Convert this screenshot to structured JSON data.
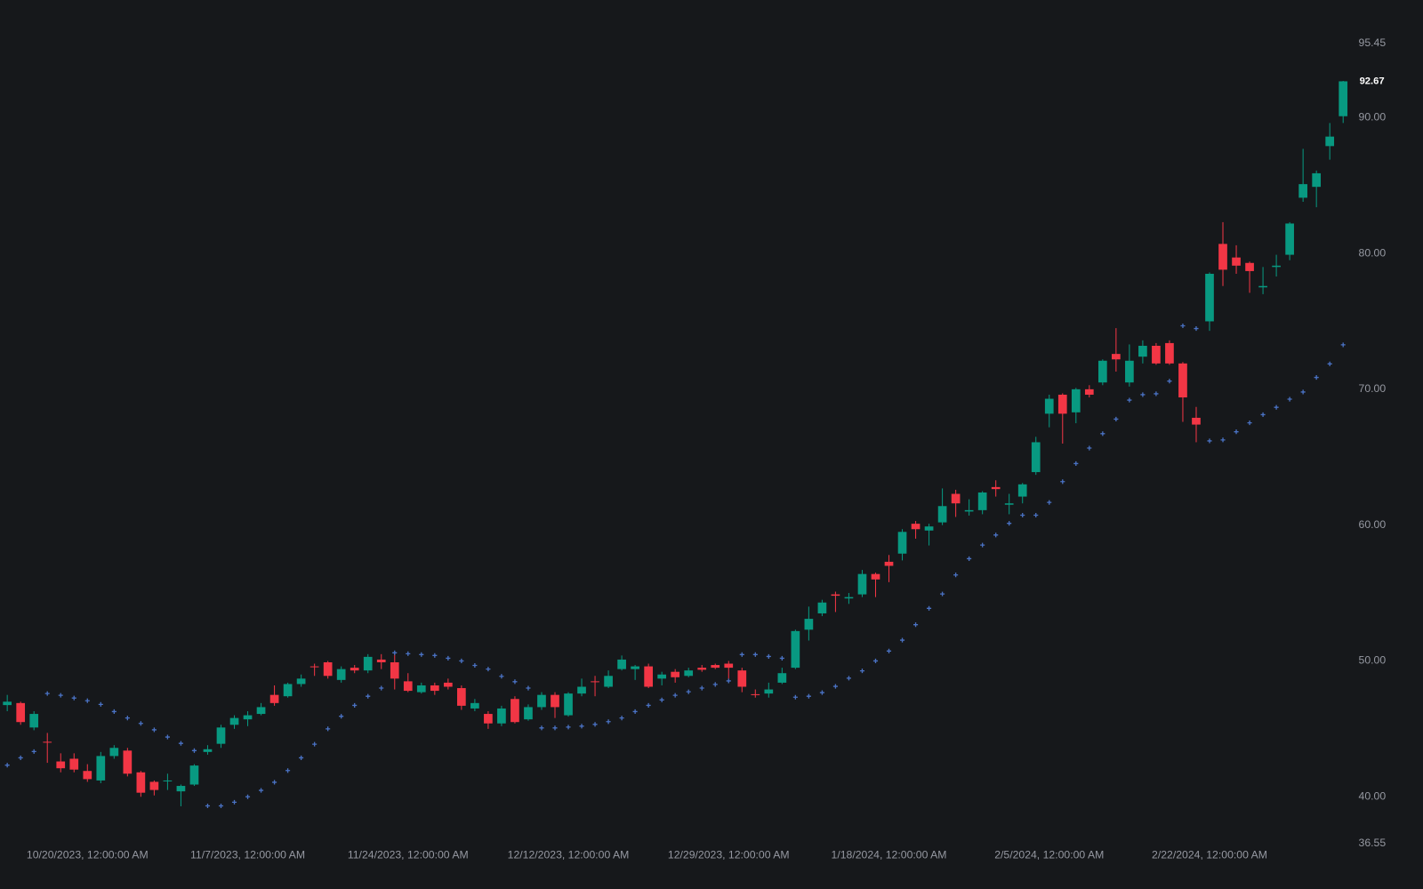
{
  "chart_data": {
    "type": "candlestick",
    "up_color": "#089981",
    "down_color": "#f23645",
    "ylim": [
      36.55,
      95.45
    ],
    "yticks": [
      36.55,
      {
        "value": 40,
        "label": "40.00"
      },
      {
        "value": 50,
        "label": "50.00"
      },
      {
        "value": 60,
        "label": "60.00"
      },
      {
        "value": 70,
        "label": "70.00"
      },
      {
        "value": 80,
        "label": "80.00"
      },
      {
        "value": 90,
        "label": "90.00"
      },
      95.45
    ],
    "categories": [
      null,
      null,
      null,
      null,
      null,
      null,
      "10/20/2023, 12:00:00 AM",
      null,
      null,
      null,
      null,
      null,
      null,
      null,
      null,
      null,
      null,
      null,
      "11/7/2023, 12:00:00 AM",
      null,
      null,
      null,
      null,
      null,
      null,
      null,
      null,
      null,
      null,
      null,
      "11/24/2023, 12:00:00 AM",
      null,
      null,
      null,
      null,
      null,
      null,
      null,
      null,
      null,
      null,
      null,
      "12/12/2023, 12:00:00 AM",
      null,
      null,
      null,
      null,
      null,
      null,
      null,
      null,
      null,
      null,
      null,
      "12/29/2023, 12:00:00 AM",
      null,
      null,
      null,
      null,
      null,
      null,
      null,
      null,
      null,
      null,
      null,
      "1/18/2024, 12:00:00 AM",
      null,
      null,
      null,
      null,
      null,
      null,
      null,
      null,
      null,
      null,
      null,
      "2/5/2024, 12:00:00 AM",
      null,
      null,
      null,
      null,
      null,
      null,
      null,
      null,
      null,
      null,
      null,
      "2/22/2024, 12:00:00 AM",
      null,
      null,
      null,
      null,
      null,
      null,
      null,
      null,
      null,
      null
    ],
    "open": [
      46.75,
      46.9,
      45.1,
      44.05,
      42.6,
      42.8,
      41.9,
      41.2,
      43.0,
      43.4,
      41.8,
      41.1,
      41.15,
      40.4,
      40.9,
      43.3,
      43.9,
      45.3,
      45.7,
      46.1,
      47.5,
      47.4,
      48.3,
      49.6,
      49.9,
      48.6,
      49.5,
      49.3,
      50.1,
      49.9,
      48.5,
      47.7,
      48.2,
      48.4,
      48.0,
      46.5,
      46.1,
      45.4,
      47.2,
      45.7,
      46.6,
      47.5,
      46.0,
      47.6,
      48.5,
      48.1,
      49.4,
      49.4,
      49.6,
      48.7,
      49.2,
      48.9,
      49.5,
      49.7,
      49.8,
      49.3,
      47.55,
      47.6,
      48.4,
      49.5,
      52.3,
      53.5,
      54.9,
      54.6,
      54.9,
      56.4,
      57.3,
      57.9,
      60.1,
      59.6,
      60.2,
      62.3,
      61.0,
      61.1,
      62.8,
      61.5,
      62.1,
      63.9,
      68.2,
      69.6,
      68.3,
      70.0,
      70.5,
      72.6,
      70.5,
      72.4,
      73.2,
      73.4,
      71.9,
      67.9,
      75.0,
      80.7,
      79.7,
      79.3,
      77.5,
      79.0,
      79.9,
      84.1,
      84.9,
      87.9,
      90.1
    ],
    "high": [
      47.5,
      47.0,
      46.3,
      44.7,
      43.2,
      43.2,
      42.4,
      43.3,
      43.8,
      43.6,
      41.9,
      41.2,
      41.7,
      40.9,
      42.4,
      43.8,
      45.3,
      46.0,
      46.3,
      46.9,
      48.2,
      48.4,
      49.0,
      49.8,
      50.0,
      49.6,
      49.7,
      50.5,
      50.5,
      50.5,
      49.1,
      48.4,
      48.4,
      48.7,
      48.2,
      47.2,
      46.3,
      46.7,
      47.4,
      46.8,
      47.7,
      47.7,
      47.7,
      48.7,
      48.9,
      49.3,
      50.4,
      49.7,
      49.8,
      49.2,
      49.4,
      49.5,
      49.7,
      49.8,
      50.0,
      49.5,
      47.9,
      48.4,
      49.5,
      52.3,
      54.0,
      54.5,
      55.1,
      55.0,
      56.7,
      56.5,
      57.8,
      59.7,
      60.3,
      60.1,
      62.7,
      62.6,
      61.9,
      62.5,
      63.3,
      62.3,
      63.1,
      66.5,
      69.6,
      69.7,
      70.1,
      70.3,
      72.2,
      74.5,
      73.3,
      73.6,
      73.4,
      73.6,
      72.0,
      68.7,
      78.6,
      82.3,
      80.6,
      79.4,
      79.0,
      79.9,
      82.3,
      87.7,
      86.1,
      89.6,
      92.7
    ],
    "low": [
      46.3,
      45.3,
      44.9,
      42.5,
      41.8,
      41.8,
      41.1,
      41.0,
      42.8,
      41.5,
      40.0,
      40.1,
      40.5,
      39.3,
      40.8,
      43.1,
      43.6,
      45.0,
      45.2,
      46.0,
      46.7,
      47.3,
      48.1,
      48.9,
      48.7,
      48.4,
      49.1,
      49.1,
      49.4,
      47.9,
      47.7,
      47.6,
      47.5,
      47.9,
      46.4,
      46.3,
      45.0,
      45.2,
      45.4,
      45.6,
      46.4,
      45.8,
      45.9,
      47.4,
      47.4,
      48.0,
      49.3,
      48.6,
      48.0,
      48.2,
      48.4,
      48.8,
      49.2,
      49.4,
      48.7,
      47.7,
      47.3,
      47.3,
      48.3,
      49.4,
      51.5,
      53.3,
      53.6,
      54.2,
      54.7,
      54.7,
      55.8,
      57.4,
      59.0,
      58.5,
      60.0,
      60.6,
      60.7,
      60.8,
      62.1,
      60.8,
      61.6,
      63.7,
      67.2,
      66.0,
      67.5,
      69.4,
      70.3,
      71.3,
      70.2,
      71.9,
      71.8,
      71.8,
      67.6,
      66.1,
      74.3,
      77.6,
      78.5,
      77.1,
      77.0,
      78.3,
      79.5,
      83.8,
      83.4,
      86.9,
      89.6
    ],
    "close": [
      47.0,
      45.5,
      46.1,
      44.0,
      42.1,
      42.0,
      41.3,
      43.0,
      43.6,
      41.7,
      40.3,
      40.5,
      41.2,
      40.8,
      42.3,
      43.5,
      45.1,
      45.8,
      46.0,
      46.6,
      46.9,
      48.3,
      48.7,
      49.55,
      48.9,
      49.4,
      49.3,
      50.3,
      49.9,
      48.7,
      47.8,
      48.2,
      47.8,
      48.1,
      46.7,
      46.9,
      45.4,
      46.5,
      45.5,
      46.6,
      47.5,
      46.6,
      47.6,
      48.1,
      48.45,
      48.9,
      50.1,
      49.6,
      48.1,
      49.0,
      48.8,
      49.3,
      49.35,
      49.5,
      49.5,
      48.1,
      47.5,
      47.9,
      49.1,
      52.2,
      53.1,
      54.3,
      54.8,
      54.7,
      56.4,
      56.0,
      57.0,
      59.5,
      59.7,
      59.9,
      61.4,
      61.6,
      61.1,
      62.4,
      62.65,
      61.6,
      63.0,
      66.1,
      69.3,
      68.2,
      70.0,
      69.6,
      72.1,
      72.2,
      72.1,
      73.2,
      71.9,
      71.9,
      69.4,
      67.4,
      78.5,
      78.8,
      79.1,
      78.7,
      77.6,
      79.1,
      82.2,
      85.1,
      85.9,
      88.6,
      92.67
    ],
    "sar": {
      "color": "#4a72c4",
      "values": [
        42.33,
        42.87,
        43.33,
        47.6,
        47.47,
        47.27,
        47.07,
        46.8,
        46.27,
        45.8,
        45.4,
        44.93,
        44.4,
        43.93,
        43.4,
        39.33,
        39.33,
        39.6,
        40.0,
        40.47,
        41.07,
        41.93,
        42.87,
        43.87,
        45.0,
        45.93,
        46.73,
        47.4,
        48.0,
        50.6,
        50.53,
        50.47,
        50.4,
        50.2,
        50.0,
        49.67,
        49.4,
        48.87,
        48.47,
        48.0,
        45.07,
        45.07,
        45.13,
        45.2,
        45.33,
        45.53,
        45.8,
        46.27,
        46.73,
        47.13,
        47.47,
        47.73,
        48.0,
        48.27,
        48.53,
        50.47,
        50.47,
        50.33,
        50.2,
        47.33,
        47.4,
        47.67,
        48.13,
        48.73,
        49.27,
        50.0,
        50.73,
        51.53,
        52.67,
        53.87,
        54.93,
        56.33,
        57.53,
        58.53,
        59.27,
        60.13,
        60.73,
        60.73,
        61.67,
        63.2,
        64.53,
        65.67,
        66.73,
        67.8,
        69.2,
        69.6,
        69.67,
        70.6,
        74.67,
        74.47,
        66.2,
        66.27,
        66.87,
        67.53,
        68.13,
        68.67,
        69.27,
        69.8,
        70.87,
        71.87,
        73.27
      ]
    }
  }
}
